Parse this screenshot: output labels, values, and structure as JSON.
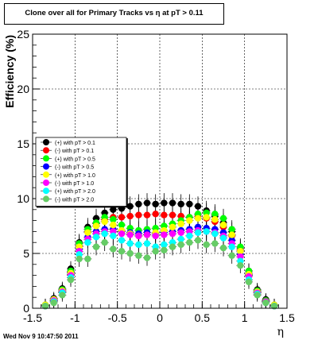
{
  "title": "Clone  over all for Primary Tracks vs    η at pT > 0.11",
  "footer": "Wed Nov  9 10:47:50 2011",
  "chart_data": {
    "type": "scatter",
    "xlabel": "η",
    "ylabel": "Efficiency (%)",
    "xlim": [
      -1.5,
      1.5
    ],
    "ylim": [
      0,
      25
    ],
    "xticks": [
      "-1.5",
      "-1",
      "-0.5",
      "0",
      "0.5",
      "1",
      "1.5"
    ],
    "yticks": [
      "0",
      "5",
      "10",
      "15",
      "20",
      "25"
    ],
    "grid": true,
    "legend_position": "top-left",
    "series": [
      {
        "name": "(+) with pT > 0.1",
        "color": "#000000",
        "x": [
          -1.35,
          -1.25,
          -1.15,
          -1.05,
          -0.95,
          -0.85,
          -0.75,
          -0.65,
          -0.55,
          -0.45,
          -0.35,
          -0.25,
          -0.15,
          -0.05,
          0.05,
          0.15,
          0.25,
          0.35,
          0.45,
          0.55,
          0.65,
          0.75,
          0.85,
          0.95,
          1.05,
          1.15,
          1.25,
          1.35
        ],
        "y": [
          0.3,
          0.9,
          1.8,
          3.6,
          6.0,
          7.4,
          8.2,
          8.7,
          9.0,
          9.1,
          9.3,
          9.5,
          9.6,
          9.5,
          9.6,
          9.6,
          9.5,
          9.5,
          9.3,
          8.9,
          8.4,
          7.8,
          7.0,
          5.5,
          3.4,
          1.7,
          0.8,
          0.3
        ]
      },
      {
        "name": "(-) with pT > 0.1",
        "color": "#ff0000",
        "x": [
          -1.35,
          -1.25,
          -1.15,
          -1.05,
          -0.95,
          -0.85,
          -0.75,
          -0.65,
          -0.55,
          -0.45,
          -0.35,
          -0.25,
          -0.15,
          -0.05,
          0.05,
          0.15,
          0.25,
          0.35,
          0.45,
          0.55,
          0.65,
          0.75,
          0.85,
          0.95,
          1.05,
          1.15,
          1.25,
          1.35
        ],
        "y": [
          0.3,
          0.8,
          1.6,
          3.3,
          5.7,
          7.0,
          7.7,
          8.1,
          8.3,
          8.3,
          8.4,
          8.5,
          8.5,
          8.6,
          8.5,
          8.5,
          8.4,
          8.3,
          8.4,
          8.2,
          7.9,
          7.4,
          6.6,
          5.3,
          3.2,
          1.6,
          0.7,
          0.3
        ]
      },
      {
        "name": "(+) with pT > 0.5",
        "color": "#00ff00",
        "x": [
          -1.35,
          -1.25,
          -1.15,
          -1.05,
          -0.95,
          -0.85,
          -0.75,
          -0.65,
          -0.55,
          -0.45,
          -0.35,
          -0.25,
          -0.15,
          -0.05,
          0.05,
          0.15,
          0.25,
          0.35,
          0.45,
          0.55,
          0.65,
          0.75,
          0.85,
          0.95,
          1.05,
          1.15,
          1.25,
          1.35
        ],
        "y": [
          0.3,
          0.8,
          1.7,
          3.4,
          5.9,
          7.2,
          7.8,
          8.3,
          8.1,
          7.6,
          7.3,
          7.1,
          7.2,
          7.3,
          7.5,
          7.7,
          8.0,
          8.3,
          8.6,
          8.7,
          8.6,
          8.2,
          7.2,
          5.6,
          3.4,
          1.6,
          0.7,
          0.3
        ]
      },
      {
        "name": "(-) with pT > 0.5",
        "color": "#0000ff",
        "x": [
          -1.35,
          -1.25,
          -1.15,
          -1.05,
          -0.95,
          -0.85,
          -0.75,
          -0.65,
          -0.55,
          -0.45,
          -0.35,
          -0.25,
          -0.15,
          -0.05,
          0.05,
          0.15,
          0.25,
          0.35,
          0.45,
          0.55,
          0.65,
          0.75,
          0.85,
          0.95,
          1.05,
          1.15,
          1.25,
          1.35
        ],
        "y": [
          0.2,
          0.7,
          1.5,
          3.1,
          5.4,
          6.5,
          7.0,
          7.2,
          7.2,
          7.0,
          6.9,
          6.8,
          6.9,
          6.8,
          6.9,
          7.0,
          7.1,
          7.2,
          7.4,
          7.3,
          7.2,
          6.9,
          6.2,
          4.9,
          3.0,
          1.5,
          0.6,
          0.2
        ]
      },
      {
        "name": "(+) with pT > 1.0",
        "color": "#ffff00",
        "x": [
          -1.35,
          -1.25,
          -1.15,
          -1.05,
          -0.95,
          -0.85,
          -0.75,
          -0.65,
          -0.55,
          -0.45,
          -0.35,
          -0.25,
          -0.15,
          -0.05,
          0.05,
          0.15,
          0.25,
          0.35,
          0.45,
          0.55,
          0.65,
          0.75,
          0.85,
          0.95,
          1.05,
          1.15,
          1.25,
          1.35
        ],
        "y": [
          0.3,
          0.8,
          1.6,
          3.2,
          5.6,
          6.9,
          7.5,
          7.9,
          7.6,
          7.1,
          6.8,
          6.6,
          6.7,
          6.9,
          7.1,
          7.4,
          7.7,
          8.0,
          8.2,
          8.3,
          8.1,
          7.6,
          6.7,
          5.2,
          3.1,
          1.5,
          0.6,
          0.3
        ]
      },
      {
        "name": "(-) with pT > 1.0",
        "color": "#ff00ff",
        "x": [
          -1.35,
          -1.25,
          -1.15,
          -1.05,
          -0.95,
          -0.85,
          -0.75,
          -0.65,
          -0.55,
          -0.45,
          -0.35,
          -0.25,
          -0.15,
          -0.05,
          0.05,
          0.15,
          0.25,
          0.35,
          0.45,
          0.55,
          0.65,
          0.75,
          0.85,
          0.95,
          1.05,
          1.15,
          1.25,
          1.35
        ],
        "y": [
          0.2,
          0.7,
          1.5,
          3.0,
          5.2,
          6.3,
          6.8,
          7.0,
          7.0,
          6.8,
          6.7,
          6.6,
          6.7,
          6.6,
          6.7,
          6.8,
          6.9,
          7.0,
          7.1,
          7.0,
          6.9,
          6.6,
          5.9,
          4.7,
          2.9,
          1.4,
          0.6,
          0.2
        ]
      },
      {
        "name": "(+) with pT > 2.0",
        "color": "#00ffff",
        "x": [
          -1.35,
          -1.25,
          -1.15,
          -1.05,
          -0.95,
          -0.85,
          -0.75,
          -0.65,
          -0.55,
          -0.45,
          -0.35,
          -0.25,
          -0.15,
          -0.05,
          0.05,
          0.15,
          0.25,
          0.35,
          0.45,
          0.55,
          0.65,
          0.75,
          0.85,
          0.95,
          1.05,
          1.15,
          1.25,
          1.35
        ],
        "y": [
          0.2,
          0.6,
          1.4,
          2.8,
          4.9,
          6.0,
          6.5,
          6.8,
          6.6,
          6.2,
          5.9,
          5.8,
          5.9,
          5.6,
          5.8,
          6.0,
          6.3,
          6.6,
          6.9,
          7.0,
          6.8,
          6.4,
          5.6,
          4.3,
          2.6,
          1.3,
          0.5,
          0.2
        ]
      },
      {
        "name": "(-) with pT > 2.0",
        "color": "#66cc66",
        "x": [
          -1.35,
          -1.25,
          -1.15,
          -1.05,
          -0.95,
          -0.85,
          -0.75,
          -0.65,
          -0.55,
          -0.45,
          -0.35,
          -0.25,
          -0.15,
          -0.05,
          0.05,
          0.15,
          0.25,
          0.35,
          0.45,
          0.55,
          0.65,
          0.75,
          0.85,
          0.95,
          1.05,
          1.15,
          1.25,
          1.35
        ],
        "y": [
          0.2,
          0.5,
          1.2,
          2.6,
          4.5,
          4.5,
          5.6,
          6.0,
          5.4,
          5.2,
          5.0,
          4.8,
          4.6,
          5.2,
          5.3,
          5.6,
          5.8,
          6.0,
          6.2,
          5.8,
          5.9,
          5.5,
          4.8,
          3.9,
          2.4,
          1.2,
          0.5,
          0.2
        ]
      }
    ]
  }
}
